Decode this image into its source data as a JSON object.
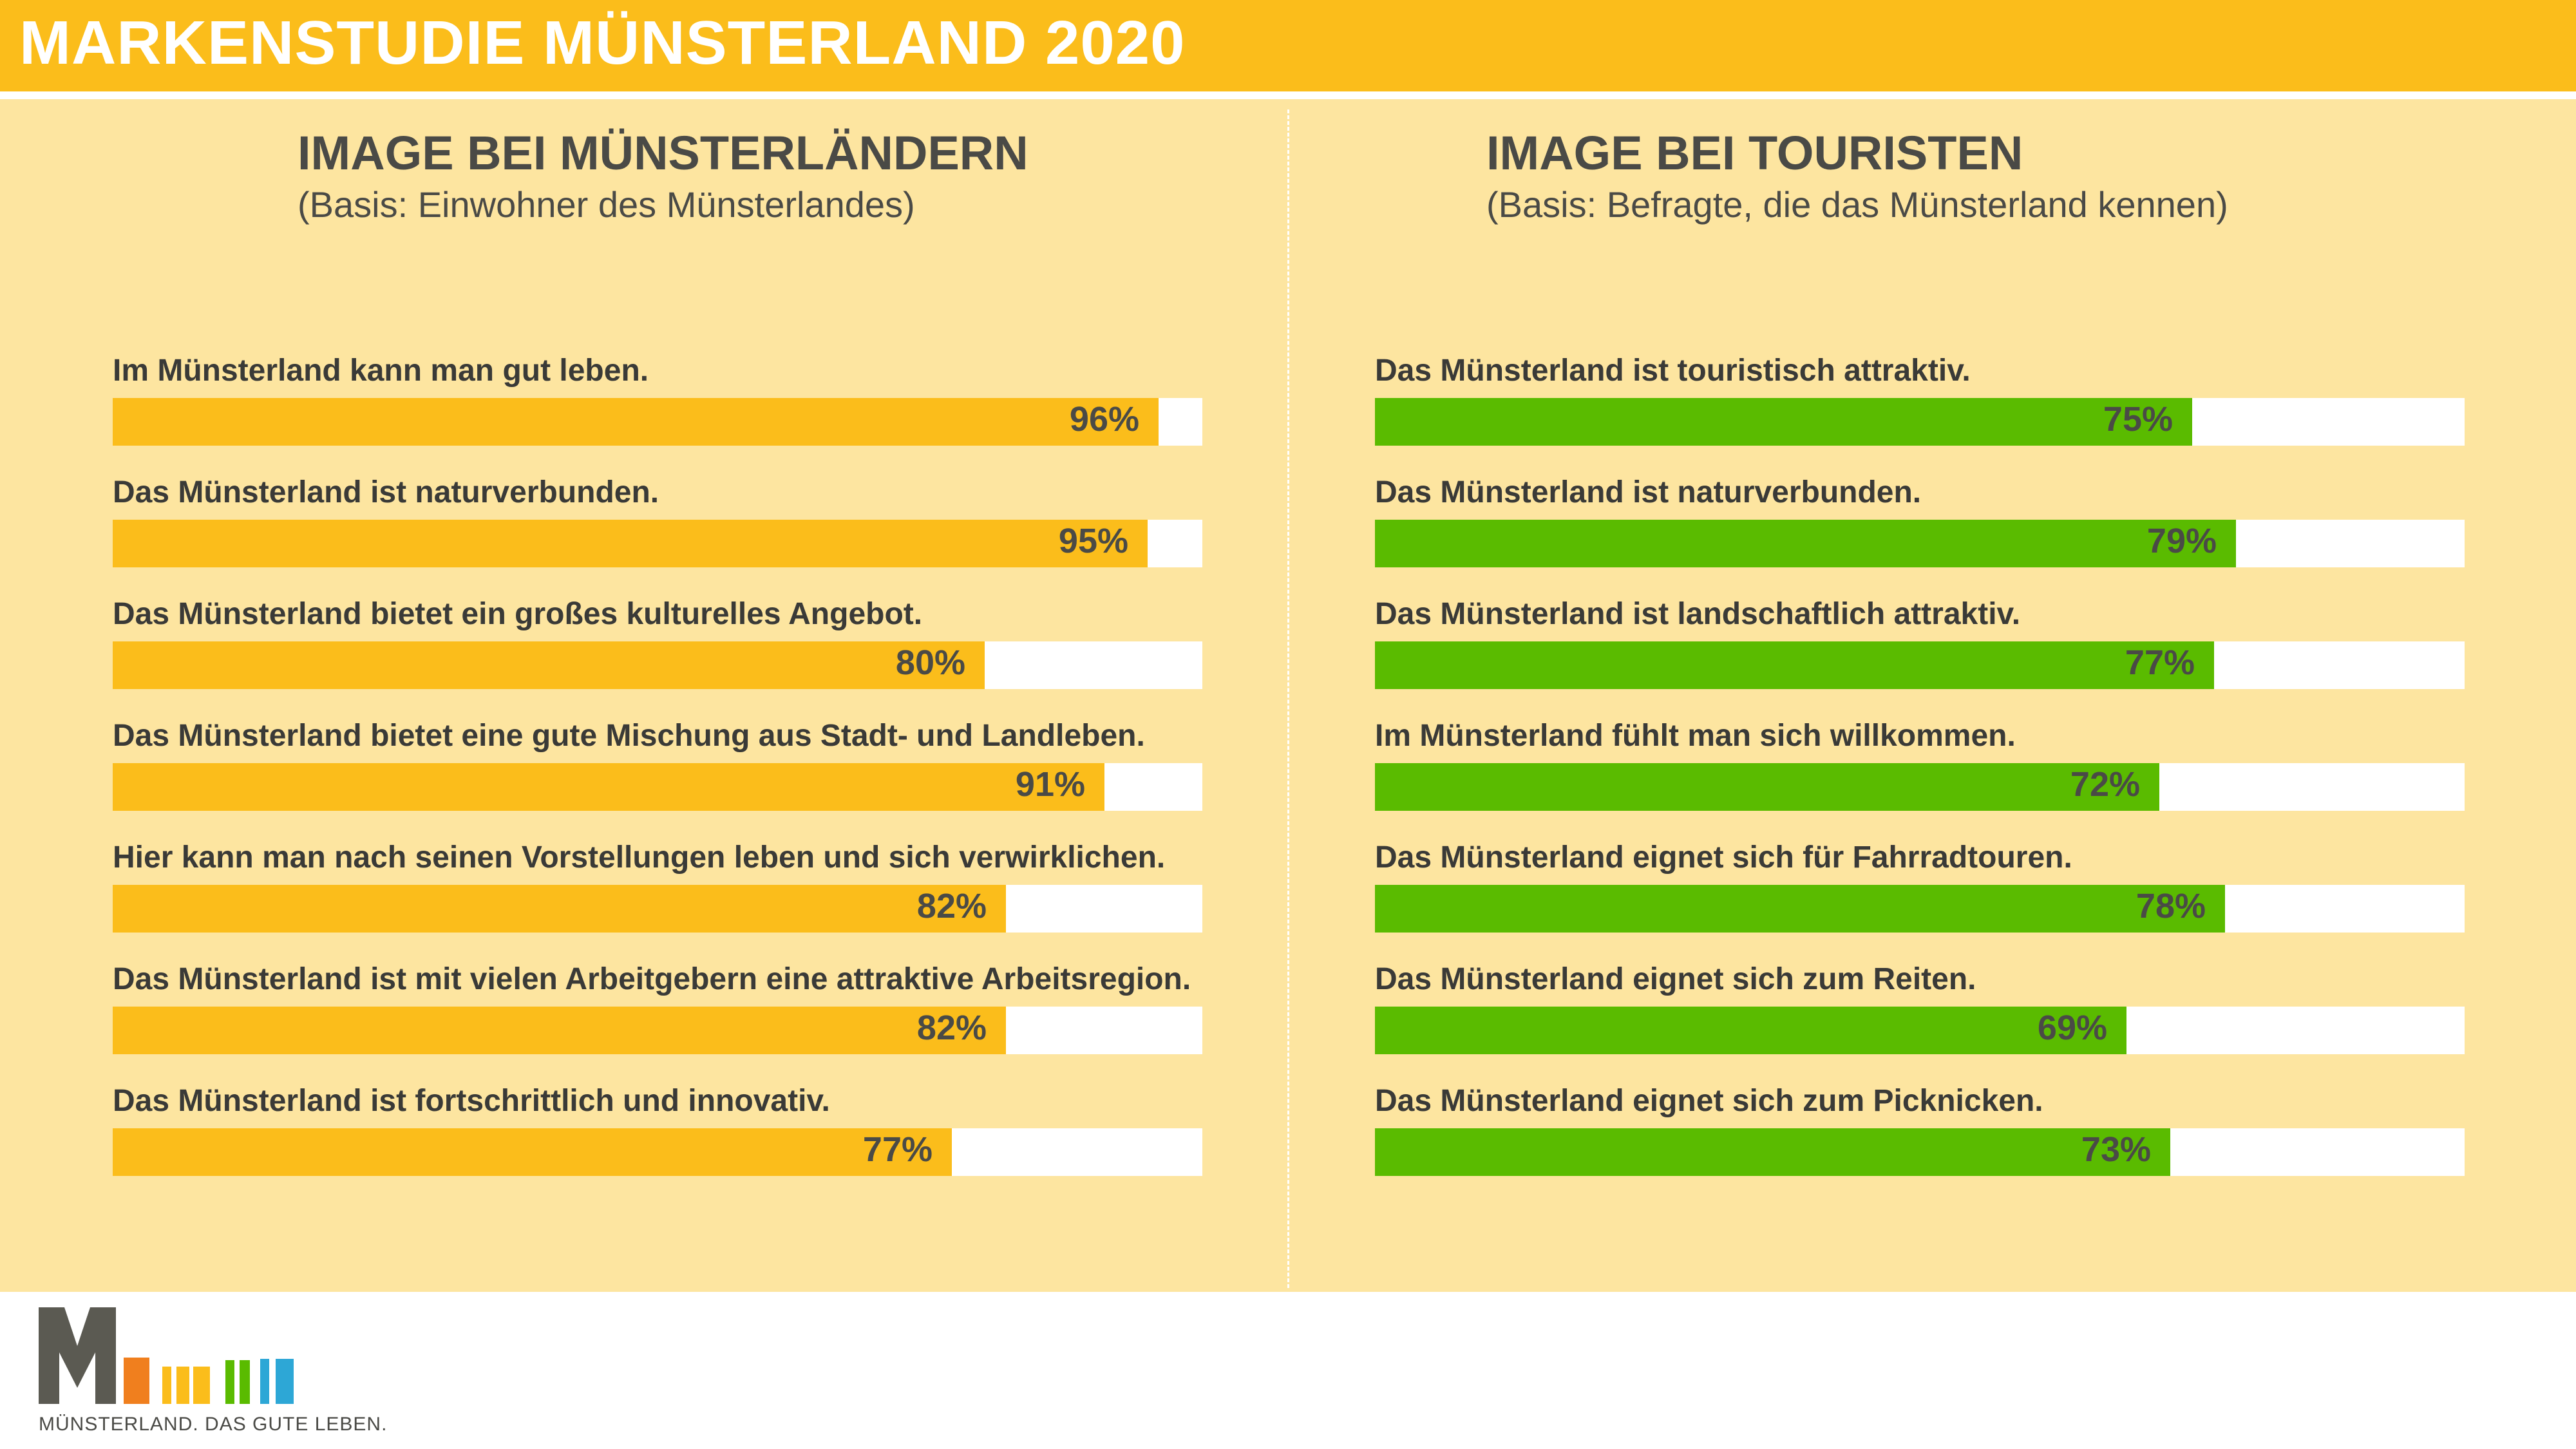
{
  "header": {
    "title": "MARKENSTUDIE MÜNSTERLAND 2020"
  },
  "colors": {
    "accent": "#fbbd1b",
    "panel": "#fde5a0",
    "tourist": "#5abb00",
    "text": "#4a4a46"
  },
  "left": {
    "title": "IMAGE BEI MÜNSTERLÄNDERN",
    "subtitle": "(Basis: Einwohner des Münsterlandes)"
  },
  "right": {
    "title": "IMAGE BEI TOURISTEN",
    "subtitle": "(Basis: Befragte, die das Münsterland kennen)"
  },
  "chart_data": [
    {
      "type": "bar",
      "orientation": "horizontal",
      "title": "IMAGE BEI MÜNSTERLÄNDERN",
      "subtitle": "(Basis: Einwohner des Münsterlandes)",
      "xlim": [
        0,
        100
      ],
      "color": "#fbbd1b",
      "categories": [
        "Im Münsterland kann man gut leben.",
        "Das Münsterland ist naturverbunden.",
        "Das Münsterland bietet ein großes kulturelles Angebot.",
        "Das Münsterland bietet eine gute Mischung aus Stadt- und Landleben.",
        "Hier kann man nach seinen Vorstellungen leben und sich verwirklichen.",
        "Das Münsterland ist mit vielen Arbeitgebern eine attraktive Arbeitsregion.",
        "Das Münsterland ist fortschrittlich und innovativ."
      ],
      "values": [
        96,
        95,
        80,
        91,
        82,
        82,
        77
      ],
      "labels": [
        "96%",
        "95%",
        "80%",
        "91%",
        "82%",
        "82%",
        "77%"
      ]
    },
    {
      "type": "bar",
      "orientation": "horizontal",
      "title": "IMAGE BEI TOURISTEN",
      "subtitle": "(Basis: Befragte, die das Münsterland kennen)",
      "xlim": [
        0,
        100
      ],
      "color": "#5abb00",
      "categories": [
        "Das Münsterland ist touristisch attraktiv.",
        "Das Münsterland ist naturverbunden.",
        "Das Münsterland ist landschaftlich attraktiv.",
        "Im Münsterland fühlt man sich willkommen.",
        "Das Münsterland eignet sich für Fahrradtouren.",
        "Das Münsterland eignet sich zum Reiten.",
        "Das Münsterland eignet sich zum Picknicken."
      ],
      "values": [
        75,
        79,
        77,
        72,
        78,
        69,
        73
      ],
      "labels": [
        "75%",
        "79%",
        "77%",
        "72%",
        "78%",
        "69%",
        "73%"
      ]
    }
  ],
  "footer": {
    "logo_icon": "muensterland-logo-icon",
    "tagline": "MÜNSTERLAND. DAS GUTE LEBEN."
  }
}
